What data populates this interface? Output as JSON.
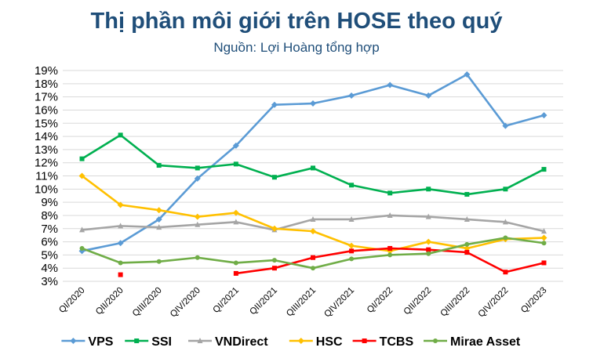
{
  "chart_data": {
    "type": "line",
    "title": "Thị phần môi giới trên HOSE theo quý",
    "subtitle": "Nguồn: Lợi Hoàng tổng hợp",
    "categories": [
      "QI/2020",
      "QII/2020",
      "QIII/2020",
      "QIV/2020",
      "QI/2021",
      "QII/2021",
      "QIII/2021",
      "QIV/2021",
      "QI/2022",
      "QII/2022",
      "QIII/2022",
      "QIV/2022",
      "QI/2023"
    ],
    "yticks": [
      "19%",
      "18%",
      "17%",
      "16%",
      "15%",
      "14%",
      "13%",
      "12%",
      "11%",
      "10%",
      "9%",
      "8%",
      "7%",
      "6%",
      "5%",
      "4%",
      "3%"
    ],
    "ylim": [
      3,
      19
    ],
    "grid": true,
    "legend_position": "bottom",
    "series": [
      {
        "name": "VPS",
        "color": "#5b9bd5",
        "marker": "diamond",
        "values": [
          5.3,
          5.9,
          7.7,
          10.8,
          13.3,
          16.4,
          16.5,
          17.1,
          17.9,
          17.1,
          18.7,
          14.8,
          15.6
        ]
      },
      {
        "name": "SSI",
        "color": "#00b050",
        "marker": "square",
        "values": [
          12.3,
          14.1,
          11.8,
          11.6,
          11.9,
          10.9,
          11.6,
          10.3,
          9.7,
          10.0,
          9.6,
          10.0,
          11.5
        ]
      },
      {
        "name": "VNDirect",
        "color": "#a5a5a5",
        "marker": "triangle",
        "values": [
          6.9,
          7.2,
          7.1,
          7.3,
          7.5,
          6.9,
          7.7,
          7.7,
          8.0,
          7.9,
          7.7,
          7.5,
          6.8
        ]
      },
      {
        "name": "HSC",
        "color": "#ffc000",
        "marker": "diamond",
        "values": [
          11.0,
          8.8,
          8.4,
          7.9,
          8.2,
          7.0,
          6.8,
          5.7,
          5.3,
          6.0,
          5.5,
          6.2,
          6.3
        ]
      },
      {
        "name": "TCBS",
        "color": "#ff0000",
        "marker": "square",
        "values": [
          null,
          3.5,
          null,
          null,
          3.6,
          4.0,
          4.8,
          5.3,
          5.5,
          5.4,
          5.2,
          3.7,
          4.4
        ]
      },
      {
        "name": "Mirae Asset",
        "color": "#70ad47",
        "marker": "circle",
        "values": [
          5.5,
          4.4,
          4.5,
          4.8,
          4.4,
          4.6,
          4.0,
          4.7,
          5.0,
          5.1,
          5.8,
          6.3,
          5.9
        ]
      }
    ]
  }
}
